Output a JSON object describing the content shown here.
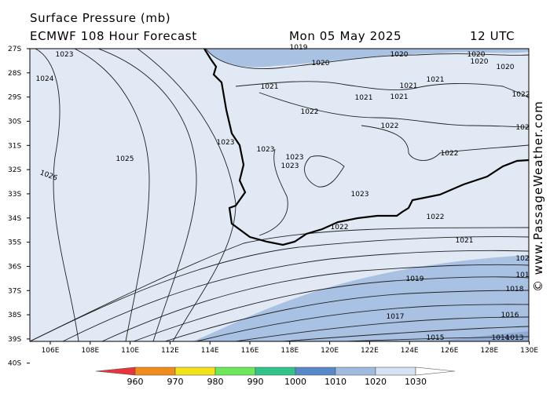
{
  "header": {
    "title": "Surface Pressure (mb)",
    "subtitle": "ECMWF 108 Hour Forecast",
    "date": "Mon 05 May 2025",
    "time": "12 UTC"
  },
  "watermark": "© www.PassageWeather.com",
  "map": {
    "lat_labels": [
      "27S",
      "28S",
      "29S",
      "30S",
      "31S",
      "32S",
      "33S",
      "34S",
      "35S",
      "36S",
      "37S",
      "38S",
      "39S",
      "40S"
    ],
    "lon_labels": [
      "106E",
      "108E",
      "110E",
      "112E",
      "114E",
      "116E",
      "118E",
      "120E",
      "122E",
      "124E",
      "126E",
      "128E",
      "130E"
    ],
    "isobar_labels": [
      "1023",
      "1024",
      "1025",
      "1026",
      "1019",
      "1020",
      "1020",
      "1020",
      "1020",
      "1020",
      "1021",
      "1021",
      "1021",
      "1021",
      "1021",
      "1022",
      "1022",
      "1022",
      "1022",
      "102",
      "1023",
      "1023",
      "1023",
      "1023",
      "1023",
      "1022",
      "1022",
      "1021",
      "102",
      "101",
      "1019",
      "1018",
      "1017",
      "1016",
      "1015",
      "1014",
      "1013"
    ]
  },
  "legend": {
    "ticks": [
      "960",
      "970",
      "980",
      "990",
      "1000",
      "1010",
      "1020",
      "1030"
    ],
    "colors": [
      "#e8343a",
      "#f08c1c",
      "#f2e21a",
      "#6ee85a",
      "#30c48a",
      "#5888c8",
      "#9fbce0",
      "#d6e2f4"
    ]
  }
}
